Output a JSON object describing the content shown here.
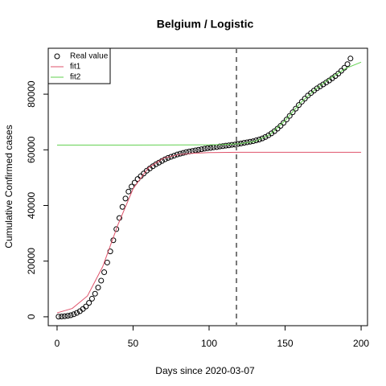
{
  "chart_data": {
    "type": "scatter",
    "title": "Belgium / Logistic",
    "x_label": "Days since 2020-03-07",
    "y_label": "Cumulative Confirmed cases",
    "xlim": [
      -5.8,
      204.2
    ],
    "ylim": [
      -3200,
      96500
    ],
    "xticks": [
      0,
      50,
      100,
      150,
      200
    ],
    "yticks": [
      0,
      20000,
      40000,
      60000,
      80000
    ],
    "vline": 118,
    "legend": "top-left",
    "series": [
      {
        "name": "Real value",
        "type": "scatter",
        "color": "#000000",
        "x": [
          1,
          3,
          5,
          7,
          9,
          11,
          13,
          15,
          17,
          19,
          21,
          23,
          25,
          27,
          29,
          31,
          33,
          35,
          37,
          39,
          41,
          43,
          45,
          47,
          49,
          51,
          53,
          55,
          57,
          59,
          61,
          63,
          65,
          67,
          69,
          71,
          73,
          75,
          77,
          79,
          81,
          83,
          85,
          87,
          89,
          91,
          93,
          95,
          97,
          99,
          101,
          103,
          105,
          107,
          109,
          111,
          113,
          115,
          117,
          119,
          121,
          123,
          125,
          127,
          129,
          131,
          133,
          135,
          137,
          139,
          141,
          143,
          145,
          147,
          149,
          151,
          153,
          155,
          157,
          159,
          161,
          163,
          165,
          167,
          169,
          171,
          173,
          175,
          177,
          179,
          181,
          183,
          185,
          187,
          189,
          191,
          193
        ],
        "values": [
          50,
          100,
          200,
          350,
          550,
          900,
          1400,
          2000,
          2800,
          3700,
          5000,
          6500,
          8300,
          10500,
          13000,
          16000,
          19500,
          23500,
          27500,
          31500,
          35500,
          39500,
          42500,
          45000,
          46800,
          48200,
          49500,
          50500,
          51500,
          52500,
          53300,
          54100,
          54800,
          55400,
          56000,
          56600,
          57100,
          57500,
          57900,
          58300,
          58600,
          58900,
          59200,
          59400,
          59600,
          59800,
          60000,
          60200,
          60400,
          60600,
          60700,
          60900,
          61000,
          61200,
          61300,
          61500,
          61600,
          61800,
          61900,
          62100,
          62300,
          62500,
          62700,
          62900,
          63100,
          63400,
          63700,
          64100,
          64600,
          65200,
          65900,
          66700,
          67600,
          68600,
          69700,
          70900,
          72200,
          73500,
          74800,
          76100,
          77300,
          78400,
          79500,
          80400,
          81300,
          82100,
          82800,
          83500,
          84200,
          84900,
          85700,
          86500,
          87400,
          88400,
          89500,
          90800,
          92800
        ]
      },
      {
        "name": "fit1",
        "type": "line",
        "color": "#DF536B",
        "x": [
          0,
          10,
          20,
          30,
          40,
          50,
          60,
          70,
          80,
          90,
          100,
          120,
          200
        ],
        "values": [
          1400,
          3000,
          7500,
          18000,
          33000,
          46000,
          53500,
          57000,
          58300,
          58800,
          59000,
          59100,
          59100
        ]
      },
      {
        "name": "fit2",
        "type": "line",
        "color": "#61D04F",
        "x": [
          0,
          50,
          100,
          110,
          120,
          130,
          140,
          150,
          160,
          170,
          180,
          190,
          200
        ],
        "values": [
          61700,
          61700,
          61800,
          61900,
          62200,
          63000,
          65500,
          70500,
          76800,
          81800,
          85800,
          89300,
          91500
        ]
      }
    ]
  }
}
